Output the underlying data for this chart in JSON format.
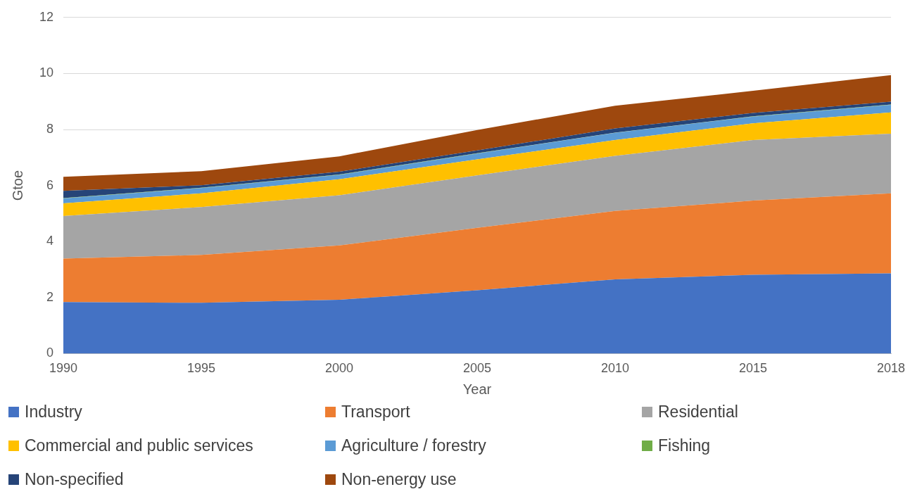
{
  "chart_data": {
    "type": "area",
    "stacked": true,
    "xlabel": "Year",
    "ylabel": "Gtoe",
    "categories": [
      "1990",
      "1995",
      "2000",
      "2005",
      "2010",
      "2015",
      "2018"
    ],
    "series": [
      {
        "name": "Industry",
        "color": "#4472c4",
        "values": [
          1.84,
          1.81,
          1.92,
          2.26,
          2.65,
          2.81,
          2.86
        ]
      },
      {
        "name": "Transport",
        "color": "#ed7d31",
        "values": [
          1.55,
          1.71,
          1.94,
          2.23,
          2.44,
          2.65,
          2.86
        ]
      },
      {
        "name": "Residential",
        "color": "#a5a5a5",
        "values": [
          1.52,
          1.71,
          1.79,
          1.87,
          1.97,
          2.16,
          2.13
        ]
      },
      {
        "name": "Commercial and public services",
        "color": "#ffc000",
        "values": [
          0.45,
          0.49,
          0.57,
          0.57,
          0.56,
          0.6,
          0.76
        ]
      },
      {
        "name": "Agriculture / forestry",
        "color": "#5b9bd5",
        "values": [
          0.18,
          0.19,
          0.16,
          0.21,
          0.26,
          0.24,
          0.27
        ]
      },
      {
        "name": "Fishing",
        "color": "#70ad47",
        "values": [
          0.01,
          0.01,
          0.01,
          0.01,
          0.01,
          0.01,
          0.01
        ]
      },
      {
        "name": "Non-specified",
        "color": "#264478",
        "values": [
          0.26,
          0.09,
          0.1,
          0.1,
          0.15,
          0.12,
          0.1
        ]
      },
      {
        "name": "Non-energy use",
        "color": "#9e480e",
        "values": [
          0.5,
          0.5,
          0.55,
          0.73,
          0.81,
          0.79,
          0.95
        ]
      }
    ],
    "ylim": [
      0,
      12
    ],
    "yticks": [
      0,
      2,
      4,
      6,
      8,
      10,
      12
    ],
    "grid": "y",
    "legend": "bottom"
  }
}
